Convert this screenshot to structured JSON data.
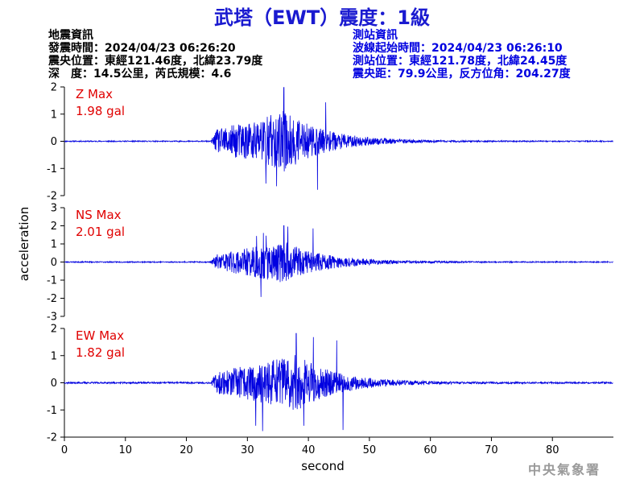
{
  "title": "武塔（EWT）震度：1級",
  "quake_info": {
    "heading": "地震資訊",
    "time": "發震時間：2024/04/23 06:26:20",
    "epicenter": "震央位置：東經121.46度，北緯23.79度",
    "depth_mag": "深　度：14.5公里，芮氏規模：4.6"
  },
  "station_info": {
    "heading": "測站資訊",
    "wave_start": "波線起始時間：2024/04/23 06:26:10",
    "location": "測站位置：東經121.78度，北緯24.45度",
    "distance": "震央距：79.9公里，反方位角：204.27度"
  },
  "agency": "中央氣象署",
  "chart_data": {
    "type": "line",
    "xlabel": "second",
    "ylabel": "acceleration",
    "xlim": [
      0,
      90
    ],
    "xticks": [
      0,
      10,
      20,
      30,
      40,
      50,
      60,
      70,
      80
    ],
    "line_color": "#0000e0",
    "panels": [
      {
        "channel": "Z",
        "max_label": "Z Max",
        "max_value": "1.98 gal",
        "ylim": [
          -2,
          2
        ],
        "yticks": [
          2,
          1,
          0,
          -1,
          -2
        ],
        "onset": 24,
        "peak_time": 36,
        "peak": 1.98,
        "noise": 0.02,
        "seed": 11
      },
      {
        "channel": "NS",
        "max_label": "NS Max",
        "max_value": "2.01 gal",
        "ylim": [
          -3,
          3
        ],
        "yticks": [
          3,
          2,
          1,
          0,
          -1,
          -2,
          -3
        ],
        "onset": 24,
        "peak_time": 36,
        "peak": 2.01,
        "noise": 0.03,
        "seed": 23
      },
      {
        "channel": "EW",
        "max_label": "EW Max",
        "max_value": "1.82 gal",
        "ylim": [
          -2,
          2
        ],
        "yticks": [
          2,
          1,
          0,
          -1,
          -2
        ],
        "onset": 24,
        "peak_time": 38,
        "peak": 1.82,
        "noise": 0.03,
        "seed": 37
      }
    ]
  }
}
